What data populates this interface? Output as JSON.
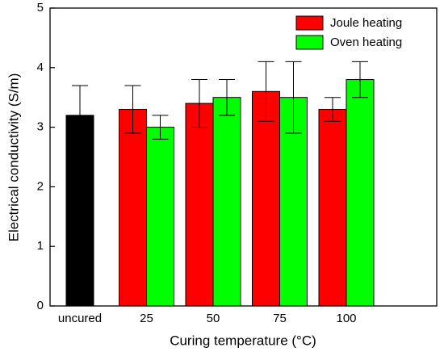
{
  "chart_data": {
    "type": "bar",
    "xlabel": "Curing temperature (°C)",
    "ylabel": "Electrical conductivity (S/m)",
    "categories": [
      "uncured",
      "25",
      "50",
      "75",
      "100"
    ],
    "series": [
      {
        "color": "#000000",
        "values": [
          3.2,
          null,
          null,
          null,
          null
        ],
        "errors": [
          0.5,
          null,
          null,
          null,
          null
        ]
      },
      {
        "name": "Joule heating",
        "color": "#ff0000",
        "values": [
          null,
          3.3,
          3.4,
          3.6,
          3.3
        ],
        "errors": [
          null,
          0.4,
          0.4,
          0.5,
          0.2
        ]
      },
      {
        "name": "Oven heating",
        "color": "#00ff00",
        "values": [
          null,
          3.0,
          3.5,
          3.5,
          3.8
        ],
        "errors": [
          null,
          0.2,
          0.3,
          0.6,
          0.3
        ]
      }
    ],
    "ylim": [
      0,
      5
    ],
    "yticks": [
      0,
      1,
      2,
      3,
      4,
      5
    ],
    "legend": "upper right"
  }
}
